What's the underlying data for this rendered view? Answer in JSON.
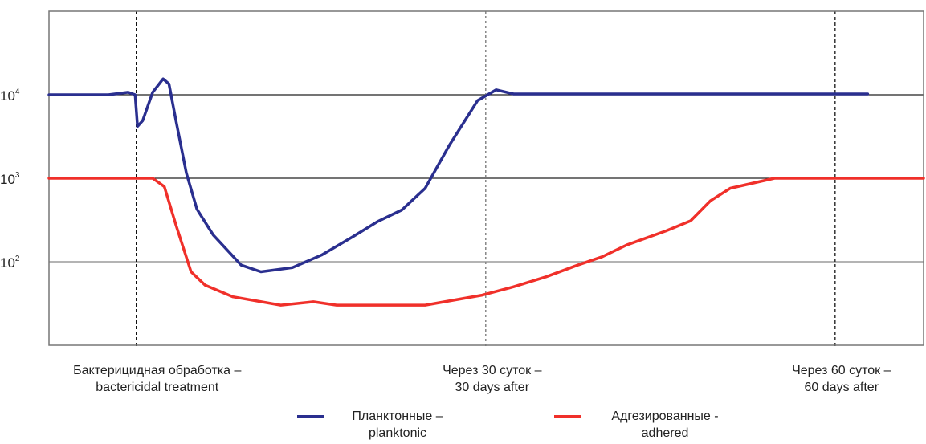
{
  "chart_data": {
    "type": "line",
    "title": "",
    "xlabel": "",
    "ylabel": "",
    "y_scale": "log10",
    "ylim_log10": [
      1,
      5
    ],
    "xlim_days": [
      -7.5,
      67.6
    ],
    "y_ticks": [
      {
        "log": 4,
        "base": "10",
        "exp": "4"
      },
      {
        "log": 3,
        "base": "10",
        "exp": "3"
      },
      {
        "log": 2,
        "base": "10",
        "exp": "2"
      }
    ],
    "x_markers": [
      {
        "day": 0,
        "line1": "Бактерицидная обработка –",
        "line2": "bactericidal treatment",
        "style": "dashed-black"
      },
      {
        "day": 30,
        "line1": "Через 30 суток –",
        "line2": "30 days after",
        "style": "dotted-gray"
      },
      {
        "day": 60,
        "line1": "Через 60 суток –",
        "line2": "60 days after",
        "style": "dashed-dark"
      }
    ],
    "series": [
      {
        "name": "Планктонные –",
        "name2": "planktonic",
        "color": "#2a2f8f",
        "points": [
          [
            -7.5,
            4.0
          ],
          [
            -2.4,
            4.0
          ],
          [
            -0.7,
            4.03
          ],
          [
            -0.1,
            4.0
          ],
          [
            0.1,
            3.62
          ],
          [
            0.55,
            3.69
          ],
          [
            1.4,
            4.03
          ],
          [
            2.3,
            4.19
          ],
          [
            2.8,
            4.13
          ],
          [
            3.4,
            3.69
          ],
          [
            4.3,
            3.06
          ],
          [
            5.2,
            2.63
          ],
          [
            6.6,
            2.32
          ],
          [
            9.0,
            1.96
          ],
          [
            10.7,
            1.88
          ],
          [
            13.4,
            1.93
          ],
          [
            15.9,
            2.08
          ],
          [
            18.6,
            2.3
          ],
          [
            20.7,
            2.48
          ],
          [
            22.8,
            2.62
          ],
          [
            24.8,
            2.88
          ],
          [
            26.9,
            3.4
          ],
          [
            29.3,
            3.93
          ],
          [
            30.9,
            4.06
          ],
          [
            32.4,
            4.01
          ],
          [
            62.8,
            4.01
          ]
        ]
      },
      {
        "name": "Адгезированные -",
        "name2": "adhered",
        "color": "#f0302a",
        "points": [
          [
            -7.5,
            3.0
          ],
          [
            1.4,
            3.0
          ],
          [
            2.4,
            2.9
          ],
          [
            3.4,
            2.44
          ],
          [
            4.7,
            1.88
          ],
          [
            5.9,
            1.72
          ],
          [
            8.3,
            1.58
          ],
          [
            12.4,
            1.48
          ],
          [
            15.2,
            1.52
          ],
          [
            17.2,
            1.48
          ],
          [
            24.8,
            1.48
          ],
          [
            29.7,
            1.6
          ],
          [
            32.4,
            1.7
          ],
          [
            35.2,
            1.82
          ],
          [
            37.9,
            1.96
          ],
          [
            40.0,
            2.06
          ],
          [
            42.1,
            2.2
          ],
          [
            45.5,
            2.37
          ],
          [
            47.6,
            2.49
          ],
          [
            49.3,
            2.73
          ],
          [
            51.0,
            2.88
          ],
          [
            54.8,
            3.0
          ],
          [
            67.6,
            3.0
          ]
        ]
      }
    ],
    "legend_placement": "bottom-center",
    "grid": "horizontal at ticks"
  }
}
